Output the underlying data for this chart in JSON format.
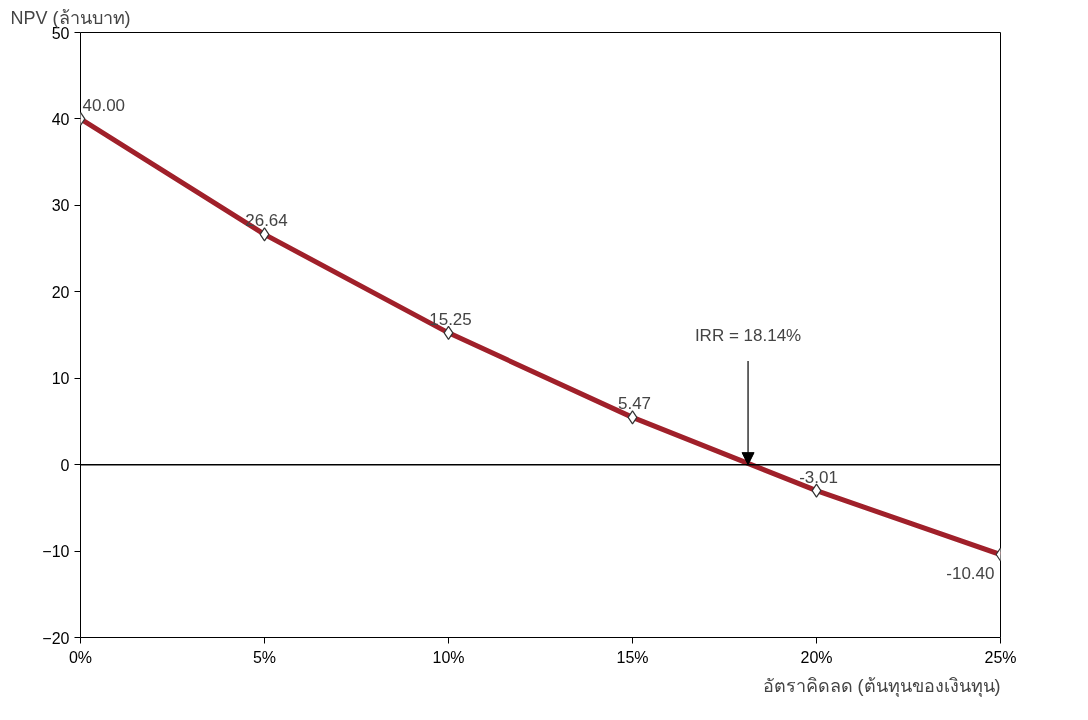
{
  "chart_data": {
    "type": "line",
    "ylabel": "NPV (ล้านบาท)",
    "xlabel": "อัตราคิดลด (ต้นทุนของเงินทุน)",
    "x": [
      0,
      5,
      10,
      15,
      20,
      25
    ],
    "series": [
      {
        "color": "#a0202a",
        "values": [
          40.0,
          26.64,
          15.25,
          5.47,
          -3.01,
          -10.4
        ],
        "value_labels": [
          "40.00",
          "26.64",
          "15.25",
          "5.47",
          "-3.01",
          "-10.40"
        ]
      }
    ],
    "xlim": [
      0,
      25
    ],
    "xticks": [
      {
        "value": 0,
        "label": "0%"
      },
      {
        "value": 5,
        "label": "5%"
      },
      {
        "value": 10,
        "label": "10%"
      },
      {
        "value": 15,
        "label": "15%"
      },
      {
        "value": 20,
        "label": "20%"
      },
      {
        "value": 25,
        "label": "25%"
      }
    ],
    "ylim": [
      -20,
      50
    ],
    "yticks": [
      -20,
      -10,
      0,
      10,
      20,
      30,
      40,
      50
    ],
    "ref_lines": [
      {
        "axis": "y",
        "value": 0,
        "color": "#000000"
      }
    ],
    "annotations": [
      {
        "text": "IRR = 18.14%",
        "x": 18.14,
        "y": 0
      }
    ],
    "marker": "diamond",
    "line_style": "solid",
    "grid": false
  }
}
